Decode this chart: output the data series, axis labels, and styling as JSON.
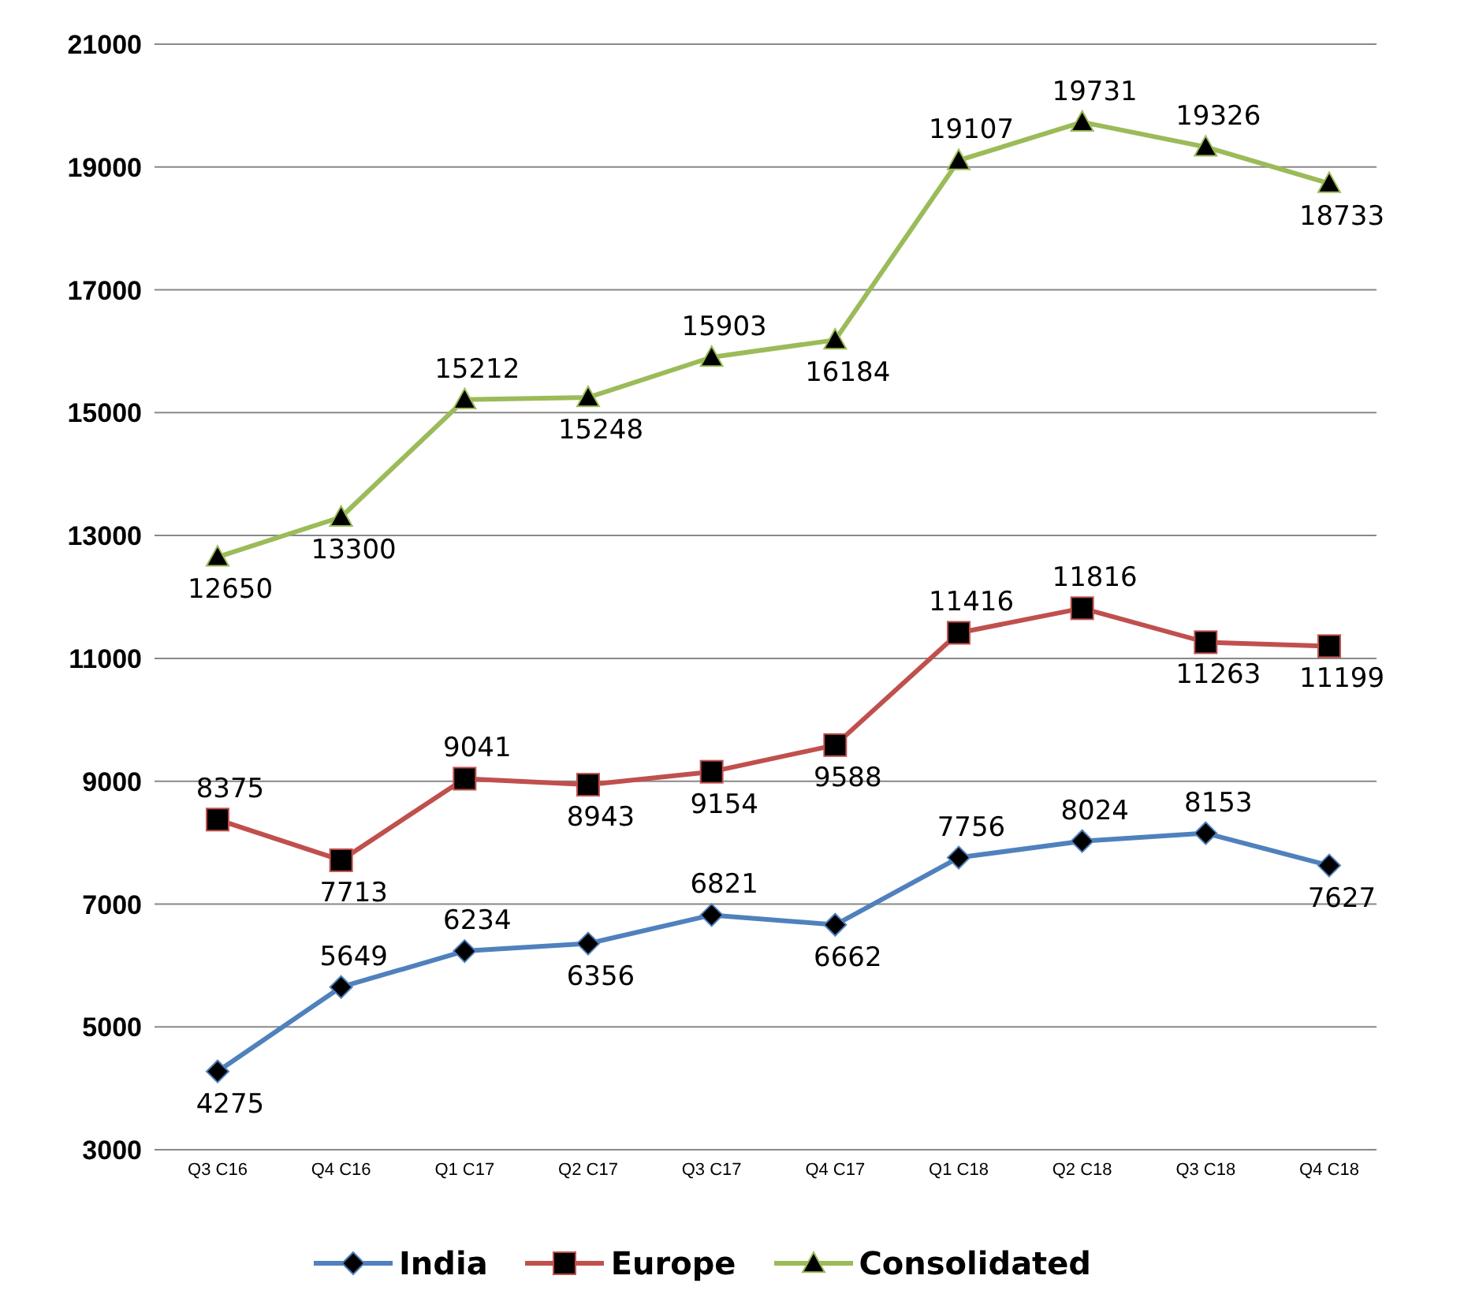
{
  "chart_data": {
    "type": "line",
    "categories": [
      "Q3 C16",
      "Q4 C16",
      "Q1 C17",
      "Q2 C17",
      "Q3 C17",
      "Q4 C17",
      "Q1 C18",
      "Q2 C18",
      "Q3 C18",
      "Q4 C18"
    ],
    "series": [
      {
        "name": "India",
        "color": "#4f81bd",
        "marker": "diamond",
        "values": [
          4275,
          5649,
          6234,
          6356,
          6821,
          6662,
          7756,
          8024,
          8153,
          7627
        ]
      },
      {
        "name": "Europe",
        "color": "#c0504d",
        "marker": "square",
        "values": [
          8375,
          7713,
          9041,
          8943,
          9154,
          9588,
          11416,
          11816,
          11263,
          11199
        ]
      },
      {
        "name": "Consolidated",
        "color": "#9bbb59",
        "marker": "triangle",
        "values": [
          12650,
          13300,
          15212,
          15248,
          15903,
          16184,
          19107,
          19731,
          19326,
          18733
        ]
      }
    ],
    "ylim": [
      3000,
      21000
    ],
    "yticks": [
      3000,
      5000,
      7000,
      9000,
      11000,
      13000,
      15000,
      17000,
      19000,
      21000
    ],
    "grid": "y",
    "legend": "bottom",
    "data_labels": true,
    "line_style": "solid"
  }
}
